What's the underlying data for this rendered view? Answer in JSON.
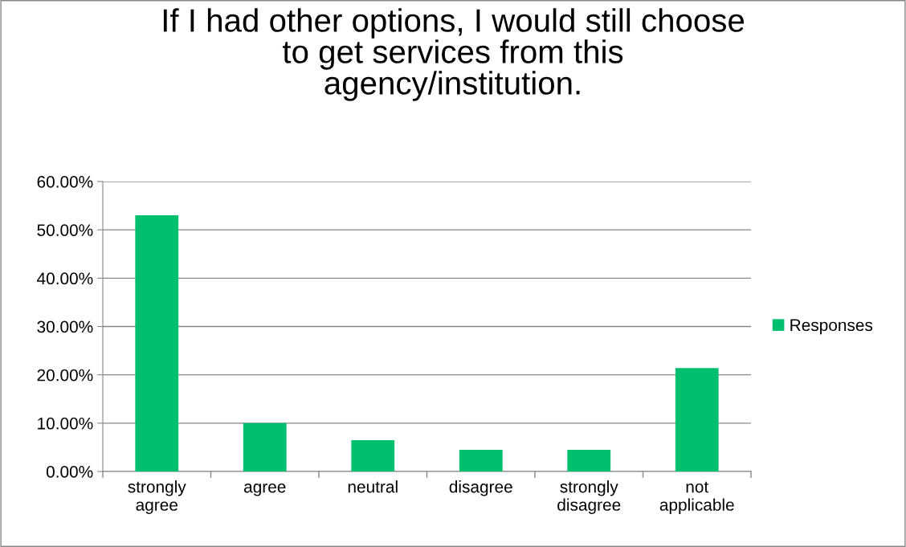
{
  "chart_data": {
    "type": "bar",
    "title": "If I had other options, I would still choose\nto get services from this\nagency/institution.",
    "categories": [
      "strongly\nagree",
      "agree",
      "neutral",
      "disagree",
      "strongly\ndisagree",
      "not\napplicable"
    ],
    "series": [
      {
        "name": "Responses",
        "color": "#00c070",
        "values": [
          53.0,
          10.0,
          6.5,
          4.5,
          4.5,
          21.4
        ]
      }
    ],
    "ylim": [
      0,
      60
    ],
    "yticks": [
      {
        "value": 0,
        "label": "0.00%"
      },
      {
        "value": 10,
        "label": "10.00%"
      },
      {
        "value": 20,
        "label": "20.00%"
      },
      {
        "value": 30,
        "label": "30.00%"
      },
      {
        "value": 40,
        "label": "40.00%"
      },
      {
        "value": 50,
        "label": "50.00%"
      },
      {
        "value": 60,
        "label": "60.00%"
      }
    ],
    "grid": "y",
    "legend": "right"
  }
}
